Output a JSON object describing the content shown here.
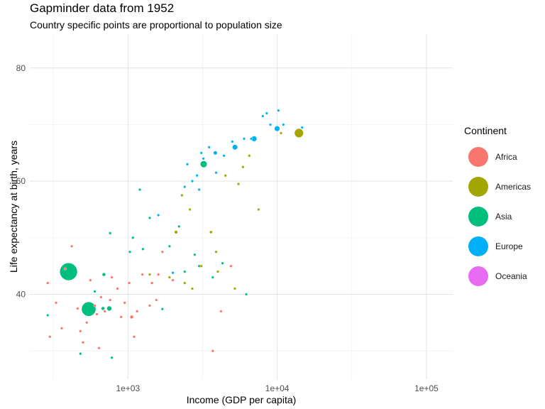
{
  "chart_data": {
    "type": "scatter",
    "title": "Gapminder data from 1952",
    "subtitle": "Country specific points are proportional to population size",
    "xlabel": "Income (GDP per capita)",
    "ylabel": "Life expectancy at birth, years",
    "x_scale": "log10",
    "xlim": [
      220,
      150000
    ],
    "ylim": [
      25,
      86
    ],
    "x_ticks": [
      {
        "value": 1000,
        "label": "1e+03"
      },
      {
        "value": 10000,
        "label": "1e+04"
      },
      {
        "value": 100000,
        "label": "1e+05"
      }
    ],
    "y_ticks": [
      {
        "value": 40,
        "label": "40"
      },
      {
        "value": 60,
        "label": "60"
      },
      {
        "value": 80,
        "label": "80"
      }
    ],
    "grid": true,
    "legend_title": "Continent",
    "legend_position": "right",
    "series": [
      {
        "name": "Africa",
        "color": "#F8766D",
        "points": [
          {
            "x": 290,
            "y": 42.0,
            "pop": 6
          },
          {
            "x": 300,
            "y": 32.5,
            "pop": 3
          },
          {
            "x": 330,
            "y": 38.5,
            "pop": 3
          },
          {
            "x": 360,
            "y": 34.0,
            "pop": 5
          },
          {
            "x": 380,
            "y": 44.5,
            "pop": 4
          },
          {
            "x": 420,
            "y": 48.5,
            "pop": 3
          },
          {
            "x": 460,
            "y": 37.5,
            "pop": 2
          },
          {
            "x": 480,
            "y": 33.5,
            "pop": 2
          },
          {
            "x": 500,
            "y": 31.5,
            "pop": 3
          },
          {
            "x": 530,
            "y": 35.0,
            "pop": 3
          },
          {
            "x": 560,
            "y": 42.5,
            "pop": 3
          },
          {
            "x": 600,
            "y": 38.0,
            "pop": 2
          },
          {
            "x": 620,
            "y": 36.5,
            "pop": 2
          },
          {
            "x": 640,
            "y": 30.5,
            "pop": 3
          },
          {
            "x": 660,
            "y": 39.5,
            "pop": 2
          },
          {
            "x": 700,
            "y": 37.0,
            "pop": 4
          },
          {
            "x": 760,
            "y": 39.0,
            "pop": 9
          },
          {
            "x": 780,
            "y": 43.0,
            "pop": 3
          },
          {
            "x": 850,
            "y": 41.0,
            "pop": 2
          },
          {
            "x": 900,
            "y": 36.0,
            "pop": 2
          },
          {
            "x": 950,
            "y": 38.5,
            "pop": 2
          },
          {
            "x": 1020,
            "y": 42.0,
            "pop": 2
          },
          {
            "x": 1060,
            "y": 36.0,
            "pop": 20
          },
          {
            "x": 1100,
            "y": 32.5,
            "pop": 2
          },
          {
            "x": 1150,
            "y": 37.0,
            "pop": 3
          },
          {
            "x": 1250,
            "y": 43.5,
            "pop": 3
          },
          {
            "x": 1400,
            "y": 38.0,
            "pop": 3
          },
          {
            "x": 1450,
            "y": 42.0,
            "pop": 8
          },
          {
            "x": 1550,
            "y": 39.0,
            "pop": 2
          },
          {
            "x": 1600,
            "y": 43.5,
            "pop": 2
          },
          {
            "x": 1700,
            "y": 47.5,
            "pop": 2
          },
          {
            "x": 2000,
            "y": 42.5,
            "pop": 2
          },
          {
            "x": 3700,
            "y": 30.0,
            "pop": 2
          },
          {
            "x": 4200,
            "y": 37.0,
            "pop": 2
          },
          {
            "x": 4900,
            "y": 45.0,
            "pop": 10
          }
        ]
      },
      {
        "name": "Americas",
        "color": "#A3A500",
        "points": [
          {
            "x": 1400,
            "y": 43.5,
            "pop": 1
          },
          {
            "x": 1900,
            "y": 43.0,
            "pop": 1
          },
          {
            "x": 2100,
            "y": 51.0,
            "pop": 18
          },
          {
            "x": 2300,
            "y": 57.5,
            "pop": 1
          },
          {
            "x": 2400,
            "y": 42.0,
            "pop": 3
          },
          {
            "x": 2600,
            "y": 55.0,
            "pop": 1
          },
          {
            "x": 2700,
            "y": 41.0,
            "pop": 2
          },
          {
            "x": 3100,
            "y": 45.0,
            "pop": 1
          },
          {
            "x": 3600,
            "y": 51.0,
            "pop": 14
          },
          {
            "x": 3900,
            "y": 47.5,
            "pop": 1
          },
          {
            "x": 4000,
            "y": 44.0,
            "pop": 2
          },
          {
            "x": 4500,
            "y": 61.0,
            "pop": 1
          },
          {
            "x": 5200,
            "y": 41.0,
            "pop": 2
          },
          {
            "x": 5500,
            "y": 59.5,
            "pop": 2
          },
          {
            "x": 5900,
            "y": 62.5,
            "pop": 4
          },
          {
            "x": 6500,
            "y": 64.5,
            "pop": 2
          },
          {
            "x": 7500,
            "y": 55.0,
            "pop": 2
          },
          {
            "x": 10600,
            "y": 68.5,
            "pop": 2
          },
          {
            "x": 13990,
            "y": 68.5,
            "pop": 150
          }
        ]
      },
      {
        "name": "Asia",
        "color": "#00BF7D",
        "points": [
          {
            "x": 290,
            "y": 36.3,
            "pop": 3
          },
          {
            "x": 400,
            "y": 44.0,
            "pop": 556
          },
          {
            "x": 480,
            "y": 29.5,
            "pop": 2
          },
          {
            "x": 546,
            "y": 37.4,
            "pop": 372
          },
          {
            "x": 600,
            "y": 40.5,
            "pop": 10
          },
          {
            "x": 680,
            "y": 37.5,
            "pop": 20
          },
          {
            "x": 690,
            "y": 43.5,
            "pop": 20
          },
          {
            "x": 750,
            "y": 37.5,
            "pop": 40
          },
          {
            "x": 760,
            "y": 50.8,
            "pop": 8
          },
          {
            "x": 780,
            "y": 28.8,
            "pop": 3
          },
          {
            "x": 1030,
            "y": 47.5,
            "pop": 6
          },
          {
            "x": 1080,
            "y": 50.0,
            "pop": 2
          },
          {
            "x": 1200,
            "y": 58.5,
            "pop": 2
          },
          {
            "x": 1260,
            "y": 48.0,
            "pop": 8
          },
          {
            "x": 1400,
            "y": 53.5,
            "pop": 2
          },
          {
            "x": 1700,
            "y": 37.4,
            "pop": 2
          },
          {
            "x": 1900,
            "y": 48.5,
            "pop": 3
          },
          {
            "x": 2200,
            "y": 52.0,
            "pop": 2
          },
          {
            "x": 2400,
            "y": 44.0,
            "pop": 1
          },
          {
            "x": 2800,
            "y": 47.0,
            "pop": 2
          },
          {
            "x": 3000,
            "y": 45.0,
            "pop": 6
          },
          {
            "x": 3217,
            "y": 63.0,
            "pop": 86
          },
          {
            "x": 3700,
            "y": 43.0,
            "pop": 1
          },
          {
            "x": 4300,
            "y": 45.5,
            "pop": 2
          },
          {
            "x": 6200,
            "y": 40.0,
            "pop": 1
          }
        ]
      },
      {
        "name": "Europe",
        "color": "#00B0F6",
        "points": [
          {
            "x": 1600,
            "y": 54.0,
            "pop": 2
          },
          {
            "x": 2000,
            "y": 43.8,
            "pop": 4
          },
          {
            "x": 2400,
            "y": 59.0,
            "pop": 3
          },
          {
            "x": 2500,
            "y": 63.0,
            "pop": 2
          },
          {
            "x": 2700,
            "y": 60.0,
            "pop": 2
          },
          {
            "x": 2900,
            "y": 61.0,
            "pop": 3
          },
          {
            "x": 3000,
            "y": 58.5,
            "pop": 2
          },
          {
            "x": 3100,
            "y": 65.0,
            "pop": 2
          },
          {
            "x": 3200,
            "y": 64.0,
            "pop": 3
          },
          {
            "x": 3500,
            "y": 66.0,
            "pop": 5
          },
          {
            "x": 3900,
            "y": 61.5,
            "pop": 5
          },
          {
            "x": 3850,
            "y": 65.0,
            "pop": 25
          },
          {
            "x": 4400,
            "y": 64.5,
            "pop": 2
          },
          {
            "x": 5000,
            "y": 67.0,
            "pop": 2
          },
          {
            "x": 5210,
            "y": 66.0,
            "pop": 47
          },
          {
            "x": 6000,
            "y": 67.5,
            "pop": 3
          },
          {
            "x": 6700,
            "y": 67.5,
            "pop": 5
          },
          {
            "x": 7000,
            "y": 67.5,
            "pop": 50
          },
          {
            "x": 8000,
            "y": 71.5,
            "pop": 2
          },
          {
            "x": 8500,
            "y": 72.0,
            "pop": 3
          },
          {
            "x": 9000,
            "y": 70.0,
            "pop": 4
          },
          {
            "x": 9980,
            "y": 69.3,
            "pop": 50
          },
          {
            "x": 10200,
            "y": 72.5,
            "pop": 2
          },
          {
            "x": 11000,
            "y": 70.0,
            "pop": 3
          },
          {
            "x": 14700,
            "y": 69.5,
            "pop": 2
          }
        ]
      },
      {
        "name": "Oceania",
        "color": "#E76BF3",
        "points": []
      }
    ]
  }
}
